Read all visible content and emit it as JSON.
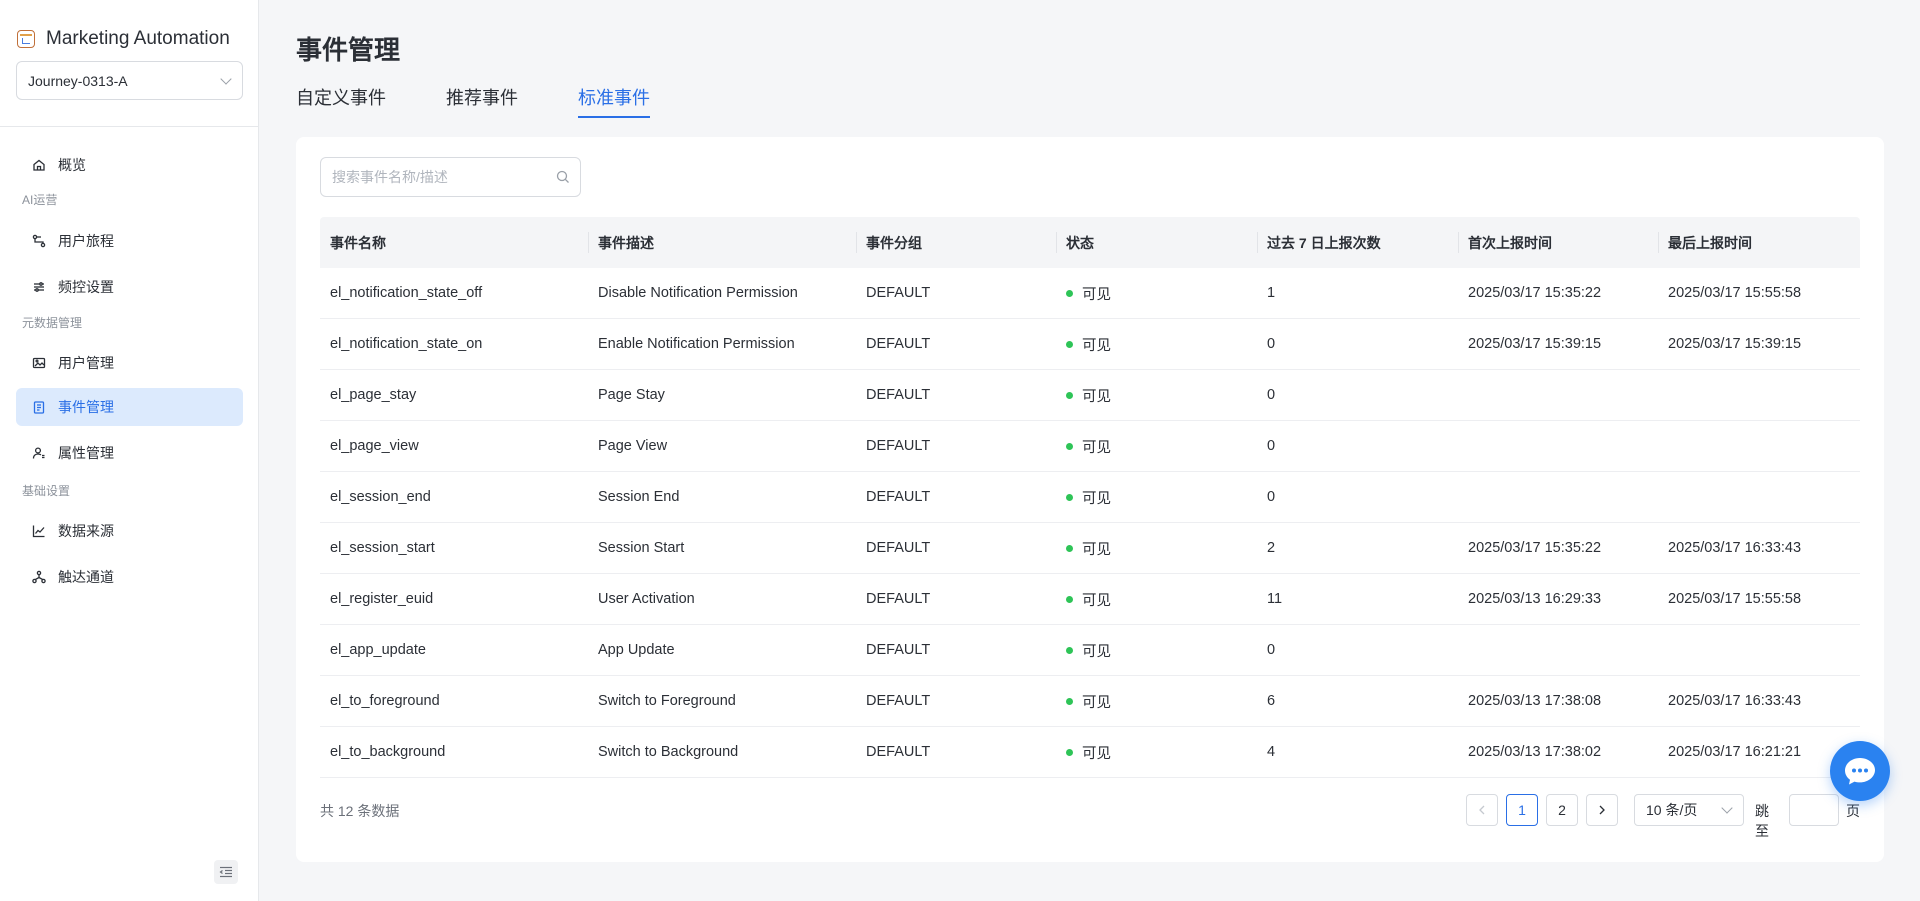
{
  "app": {
    "title": "Marketing Automation"
  },
  "journey_select": {
    "value": "Journey-0313-A"
  },
  "sidebar": {
    "items": [
      {
        "label": "概览",
        "icon": "home-icon"
      },
      {
        "group": "AI运营"
      },
      {
        "label": "用户旅程",
        "icon": "journey-icon"
      },
      {
        "label": "频控设置",
        "icon": "sliders-icon"
      },
      {
        "group": "元数据管理"
      },
      {
        "label": "用户管理",
        "icon": "image-icon"
      },
      {
        "label": "事件管理",
        "icon": "clipboard-icon",
        "active": true
      },
      {
        "label": "属性管理",
        "icon": "user-icon"
      },
      {
        "group": "基础设置"
      },
      {
        "label": "数据来源",
        "icon": "chart-line-icon"
      },
      {
        "label": "触达通道",
        "icon": "network-icon"
      }
    ]
  },
  "page": {
    "title": "事件管理"
  },
  "tabs": [
    {
      "label": "自定义事件"
    },
    {
      "label": "推荐事件"
    },
    {
      "label": "标准事件",
      "active": true
    }
  ],
  "search": {
    "placeholder": "搜索事件名称/描述"
  },
  "table": {
    "headers": [
      "事件名称",
      "事件描述",
      "事件分组",
      "状态",
      "过去 7 日上报次数",
      "首次上报时间",
      "最后上报时间"
    ],
    "rows": [
      [
        "el_notification_state_off",
        "Disable Notification Permission",
        "DEFAULT",
        "可见",
        "1",
        "2025/03/17 15:35:22",
        "2025/03/17 15:55:58"
      ],
      [
        "el_notification_state_on",
        "Enable Notification Permission",
        "DEFAULT",
        "可见",
        "0",
        "2025/03/17 15:39:15",
        "2025/03/17 15:39:15"
      ],
      [
        "el_page_stay",
        "Page Stay",
        "DEFAULT",
        "可见",
        "0",
        "",
        ""
      ],
      [
        "el_page_view",
        "Page View",
        "DEFAULT",
        "可见",
        "0",
        "",
        ""
      ],
      [
        "el_session_end",
        "Session End",
        "DEFAULT",
        "可见",
        "0",
        "",
        ""
      ],
      [
        "el_session_start",
        "Session Start",
        "DEFAULT",
        "可见",
        "2",
        "2025/03/17 15:35:22",
        "2025/03/17 16:33:43"
      ],
      [
        "el_register_euid",
        "User Activation",
        "DEFAULT",
        "可见",
        "11",
        "2025/03/13 16:29:33",
        "2025/03/17 15:55:58"
      ],
      [
        "el_app_update",
        "App Update",
        "DEFAULT",
        "可见",
        "0",
        "",
        ""
      ],
      [
        "el_to_foreground",
        "Switch to Foreground",
        "DEFAULT",
        "可见",
        "6",
        "2025/03/13 17:38:08",
        "2025/03/17 16:33:43"
      ],
      [
        "el_to_background",
        "Switch to Background",
        "DEFAULT",
        "可见",
        "4",
        "2025/03/13 17:38:02",
        "2025/03/17 16:21:21"
      ]
    ]
  },
  "pagination": {
    "total_text": "共 12 条数据",
    "pages": [
      "1",
      "2"
    ],
    "current": "1",
    "page_size": "10 条/页",
    "jump_label": "跳至",
    "page_label": "页"
  },
  "colors": {
    "accent": "#2a6fe6",
    "active_bg": "#dceafd",
    "status_visible": "#2ec457",
    "fab": "#2a82f0"
  }
}
